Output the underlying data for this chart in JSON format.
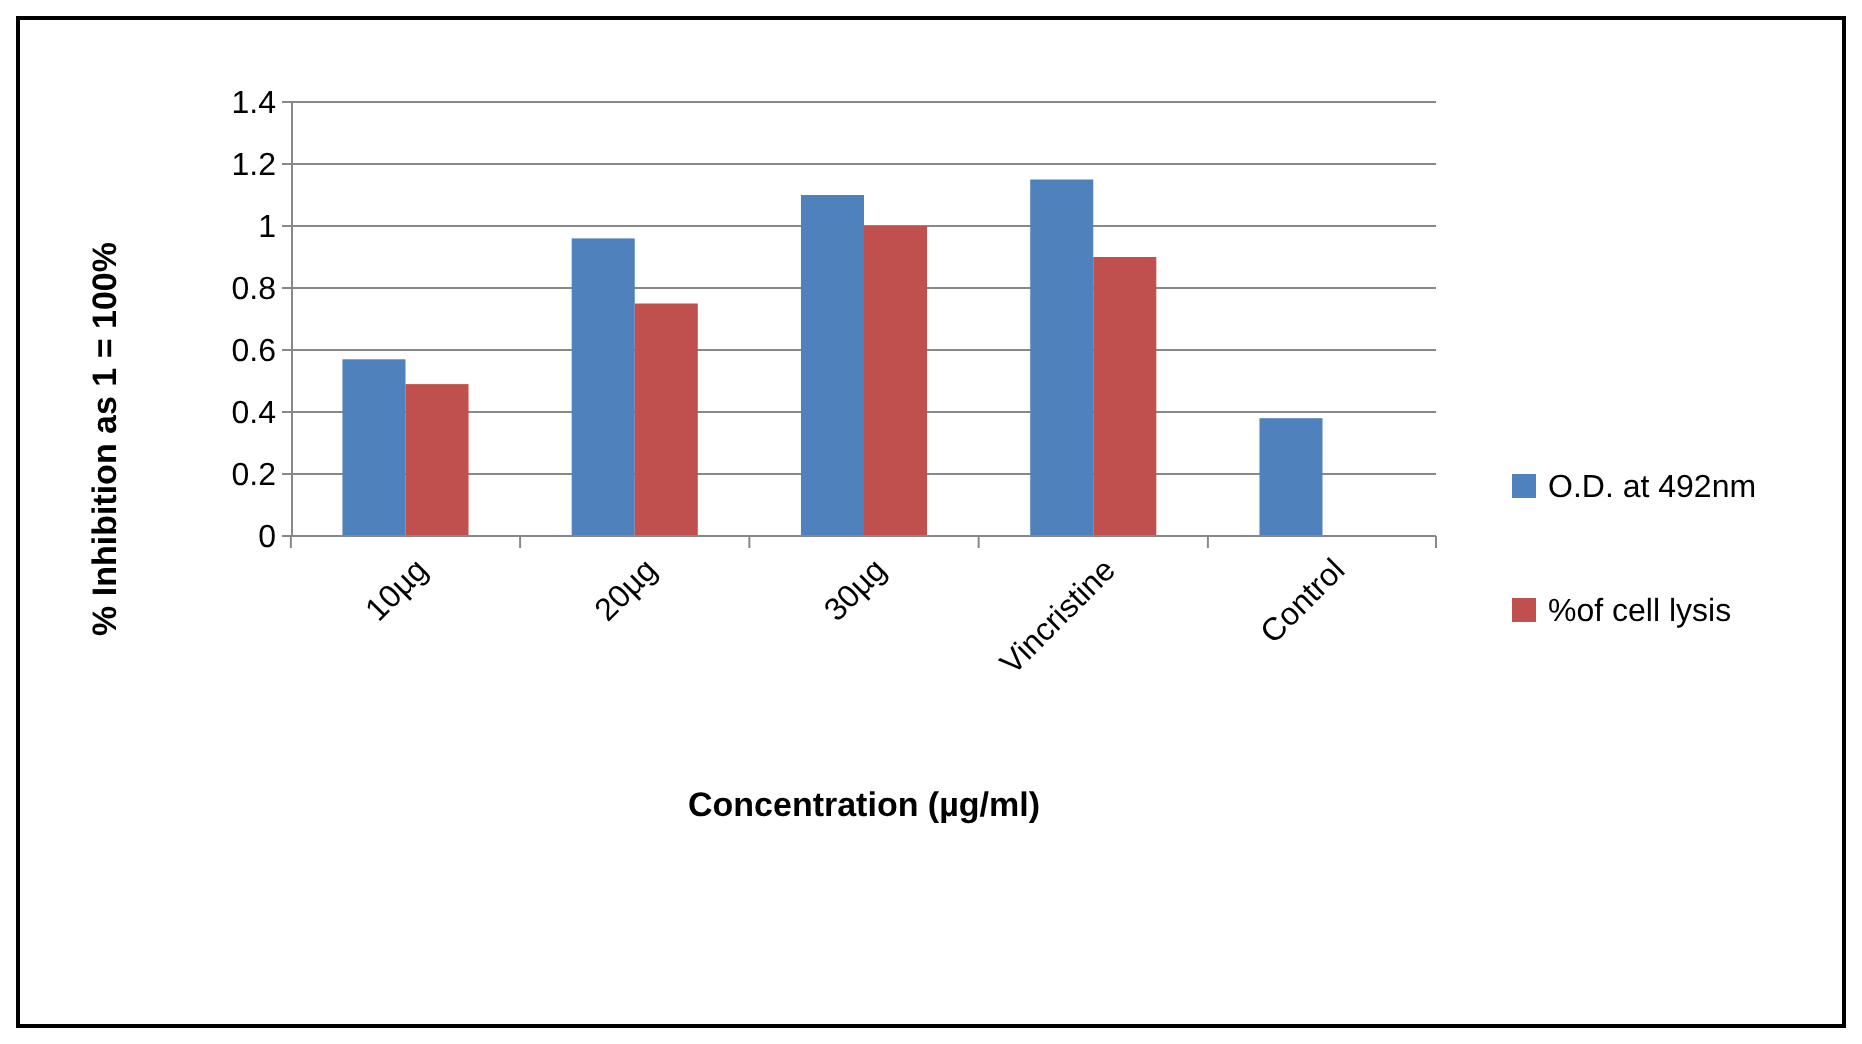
{
  "chart_data": {
    "type": "bar",
    "xlabel": "Concentration (µg/ml)",
    "ylabel": "% Inhibition as 1 = 100%",
    "categories": [
      "10µg",
      "20µg",
      "30µg",
      "Vincristine",
      "Control"
    ],
    "series": [
      {
        "name": "O.D. at 492nm",
        "color": "#4f81bd",
        "values": [
          0.57,
          0.96,
          1.1,
          1.15,
          0.38
        ]
      },
      {
        "name": "%of cell lysis",
        "color": "#c0504d",
        "values": [
          0.49,
          0.75,
          1.0,
          0.9,
          null
        ]
      }
    ],
    "ylim": [
      0,
      1.4
    ],
    "yticks": [
      0,
      0.2,
      0.4,
      0.6,
      0.8,
      1,
      1.2,
      1.4
    ],
    "grid": "y",
    "legend": "right"
  }
}
